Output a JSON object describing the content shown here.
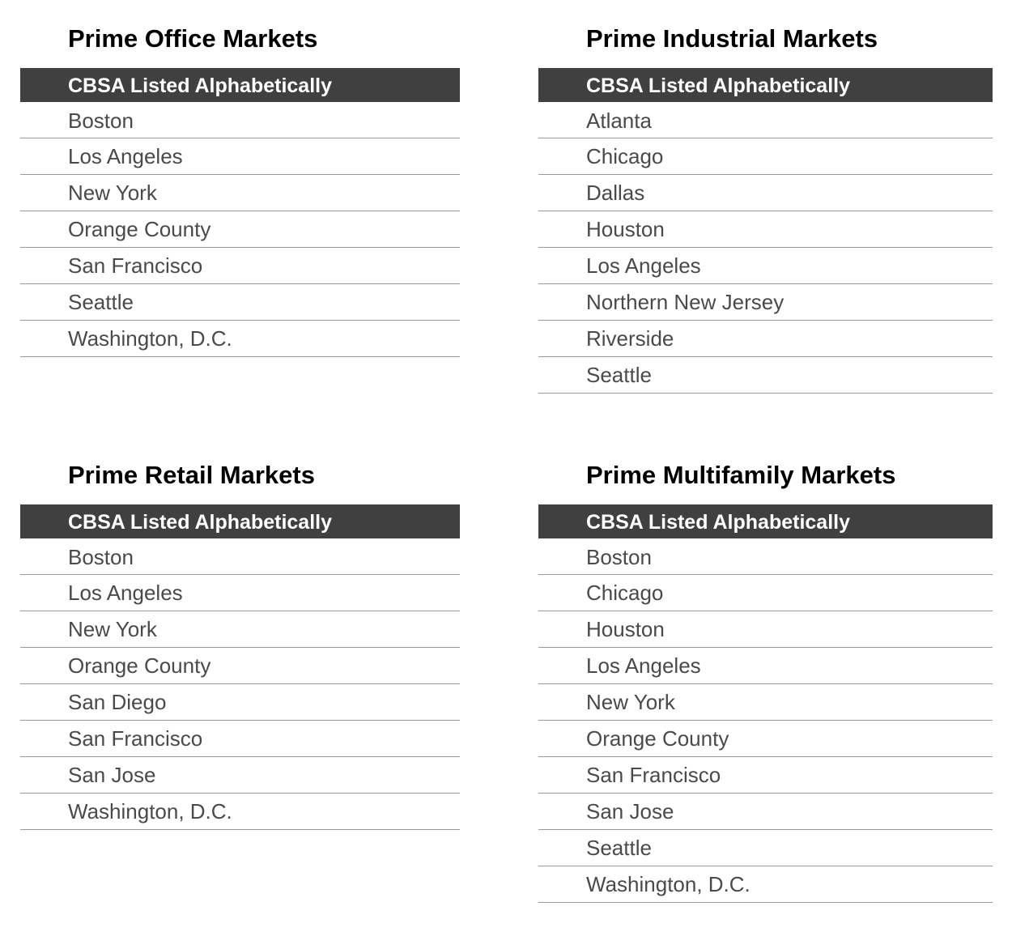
{
  "panels": [
    {
      "title": "Prime Office Markets",
      "header": "CBSA Listed Alphabetically",
      "rows": [
        "Boston",
        "Los Angeles",
        "New York",
        "Orange County",
        "San Francisco",
        "Seattle",
        "Washington, D.C."
      ]
    },
    {
      "title": "Prime Industrial Markets",
      "header": "CBSA Listed Alphabetically",
      "rows": [
        "Atlanta",
        "Chicago",
        "Dallas",
        "Houston",
        "Los Angeles",
        "Northern New Jersey",
        "Riverside",
        "Seattle"
      ]
    },
    {
      "title": "Prime Retail Markets",
      "header": "CBSA Listed Alphabetically",
      "rows": [
        "Boston",
        "Los Angeles",
        "New York",
        "Orange County",
        "San Diego",
        "San Francisco",
        "San Jose",
        "Washington, D.C."
      ]
    },
    {
      "title": "Prime Multifamily Markets",
      "header": "CBSA Listed Alphabetically",
      "rows": [
        "Boston",
        "Chicago",
        "Houston",
        "Los Angeles",
        "New York",
        "Orange County",
        "San Francisco",
        "San Jose",
        "Seattle",
        "Washington, D.C."
      ]
    }
  ],
  "colors": {
    "header_bar": "#404040",
    "header_text": "#ffffff",
    "row_text": "#4a4a4a",
    "divider": "#9a9a9a"
  }
}
